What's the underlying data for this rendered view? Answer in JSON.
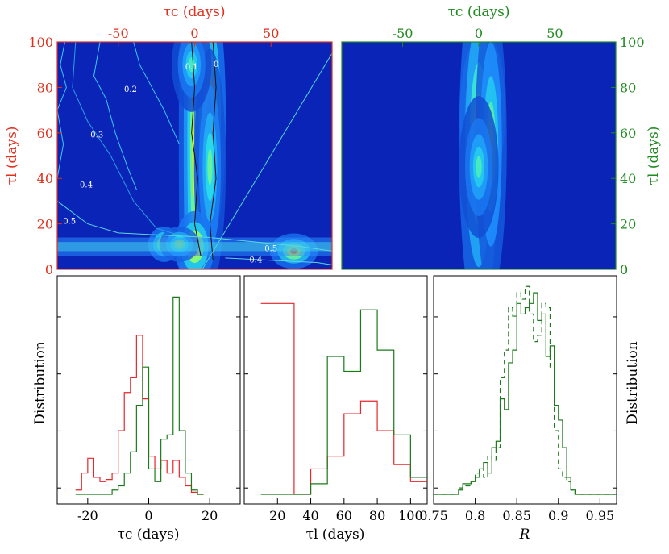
{
  "colors": {
    "red_axis": "#e0301e",
    "green_axis": "#1f8a1f",
    "red_series": "#e8262a",
    "green_series": "#1a7a1a",
    "black": "#000000"
  },
  "chart_data": [
    {
      "type": "heatmap",
      "panel": "top-left",
      "top_axis": {
        "label": "τc (days)",
        "ticks": [
          -50,
          0,
          50
        ],
        "range": [
          -90,
          90
        ]
      },
      "left_axis": {
        "label": "τl (days)",
        "ticks": [
          0,
          20,
          40,
          60,
          80,
          100
        ],
        "range": [
          0,
          100
        ]
      },
      "contour_labels": [
        "0.1",
        "0",
        "0.2",
        "0.3",
        "0.4",
        "0.5",
        "0.5",
        "0.4"
      ],
      "hotspots": [
        {
          "tc": 0,
          "tl": 55,
          "w": 4,
          "h": 60,
          "v": 0.7
        },
        {
          "tc": 10,
          "tl": 68,
          "w": 4,
          "h": 22,
          "v": 0.95
        },
        {
          "tc": 10,
          "tl": 45,
          "w": 4,
          "h": 20,
          "v": 0.55
        },
        {
          "tc": -2,
          "tl": 90,
          "w": 5,
          "h": 8,
          "v": 0.5
        },
        {
          "tc": 0,
          "tl": 10,
          "w": 5,
          "h": 6,
          "v": 1.0
        },
        {
          "tc": -20,
          "tl": 11,
          "w": 4,
          "h": 3,
          "v": 0.95
        },
        {
          "tc": -10,
          "tl": 11,
          "w": 5,
          "h": 3,
          "v": 0.75
        },
        {
          "tc": 65,
          "tl": 8,
          "w": 6,
          "h": 3,
          "v": 0.9
        }
      ]
    },
    {
      "type": "heatmap",
      "panel": "top-right",
      "top_axis": {
        "label": "τc (days)",
        "ticks": [
          -50,
          0,
          50
        ],
        "range": [
          -90,
          90
        ]
      },
      "right_axis": {
        "label": "τl (days)",
        "ticks": [
          0,
          20,
          40,
          60,
          80,
          100
        ],
        "range": [
          0,
          100
        ]
      },
      "hotspots": [
        {
          "tc": -2,
          "tl": 68,
          "w": 4,
          "h": 12,
          "v": 1.0
        },
        {
          "tc": 7,
          "tl": 70,
          "w": 4,
          "h": 12,
          "v": 1.0
        },
        {
          "tc": 0,
          "tl": 55,
          "w": 5,
          "h": 30,
          "v": 0.8
        },
        {
          "tc": 8,
          "tl": 55,
          "w": 4,
          "h": 25,
          "v": 0.65
        },
        {
          "tc": 0,
          "tl": 45,
          "w": 5,
          "h": 12,
          "v": 0.5
        }
      ]
    },
    {
      "type": "histogram",
      "panel": "bottom-left",
      "xlabel": "τc (days)",
      "ylabel": "Distribution",
      "xlim": [
        -30,
        30
      ],
      "ylim": [
        0,
        100
      ],
      "xticks": [
        -20,
        0,
        20
      ],
      "series": [
        {
          "color": "red",
          "edges": [
            -24,
            -22,
            -20,
            -18,
            -16,
            -14,
            -12,
            -10,
            -8,
            -6,
            -4,
            -2,
            0,
            2,
            4,
            6,
            8,
            10,
            12,
            14,
            16,
            18
          ],
          "values": [
            2,
            10,
            17,
            8,
            6,
            7,
            10,
            30,
            48,
            55,
            75,
            45,
            18,
            12,
            16,
            10,
            16,
            8,
            4,
            1,
            0
          ]
        },
        {
          "color": "green",
          "edges": [
            -24,
            -22,
            -20,
            -18,
            -16,
            -14,
            -12,
            -10,
            -8,
            -6,
            -4,
            -2,
            0,
            2,
            4,
            6,
            8,
            10,
            12,
            14,
            16,
            18
          ],
          "values": [
            0,
            0,
            0,
            0,
            0,
            0,
            2,
            4,
            10,
            20,
            42,
            60,
            12,
            6,
            26,
            28,
            93,
            30,
            10,
            2,
            0
          ]
        }
      ]
    },
    {
      "type": "histogram",
      "panel": "bottom-middle",
      "xlabel": "τl (days)",
      "ylabel": "",
      "xlim": [
        0,
        110
      ],
      "ylim": [
        0,
        100
      ],
      "xticks": [
        20,
        40,
        60,
        80,
        100
      ],
      "series": [
        {
          "color": "red",
          "edges": [
            10,
            30,
            40,
            50,
            60,
            70,
            80,
            90,
            100,
            110
          ],
          "values": [
            90,
            0,
            12,
            18,
            38,
            44,
            30,
            14,
            6
          ]
        },
        {
          "color": "green",
          "edges": [
            10,
            30,
            40,
            50,
            60,
            70,
            80,
            90,
            100,
            110
          ],
          "values": [
            0,
            0,
            5,
            65,
            58,
            87,
            68,
            28,
            8
          ]
        }
      ]
    },
    {
      "type": "histogram",
      "panel": "bottom-right",
      "xlabel": "R",
      "ylabel": "Distribution",
      "xlim": [
        0.75,
        0.97
      ],
      "ylim": [
        0,
        100
      ],
      "xticks": [
        0.75,
        0.8,
        0.85,
        0.9,
        0.95
      ],
      "series": [
        {
          "color": "green",
          "style": "solid",
          "edges": [
            0.75,
            0.78,
            0.785,
            0.79,
            0.795,
            0.8,
            0.805,
            0.81,
            0.815,
            0.82,
            0.825,
            0.83,
            0.835,
            0.84,
            0.845,
            0.85,
            0.855,
            0.86,
            0.865,
            0.87,
            0.875,
            0.88,
            0.885,
            0.89,
            0.895,
            0.9,
            0.905,
            0.91,
            0.915,
            0.92,
            0.925,
            0.97
          ],
          "values": [
            0,
            2,
            5,
            5,
            6,
            8,
            12,
            15,
            10,
            22,
            25,
            45,
            40,
            62,
            68,
            90,
            85,
            88,
            90,
            95,
            82,
            85,
            65,
            70,
            42,
            35,
            22,
            8,
            2,
            0,
            0
          ]
        },
        {
          "color": "green",
          "style": "dashed",
          "edges": [
            0.75,
            0.78,
            0.785,
            0.79,
            0.795,
            0.8,
            0.805,
            0.81,
            0.815,
            0.82,
            0.825,
            0.83,
            0.835,
            0.84,
            0.845,
            0.85,
            0.855,
            0.86,
            0.865,
            0.87,
            0.875,
            0.88,
            0.885,
            0.89,
            0.895,
            0.9,
            0.905,
            0.91,
            0.915,
            0.92,
            0.925,
            0.97
          ],
          "values": [
            0,
            3,
            4,
            4,
            6,
            10,
            12,
            8,
            18,
            16,
            22,
            55,
            68,
            88,
            84,
            95,
            92,
            98,
            85,
            72,
            75,
            90,
            88,
            60,
            30,
            12,
            8,
            6,
            2,
            0,
            0
          ]
        }
      ]
    }
  ]
}
